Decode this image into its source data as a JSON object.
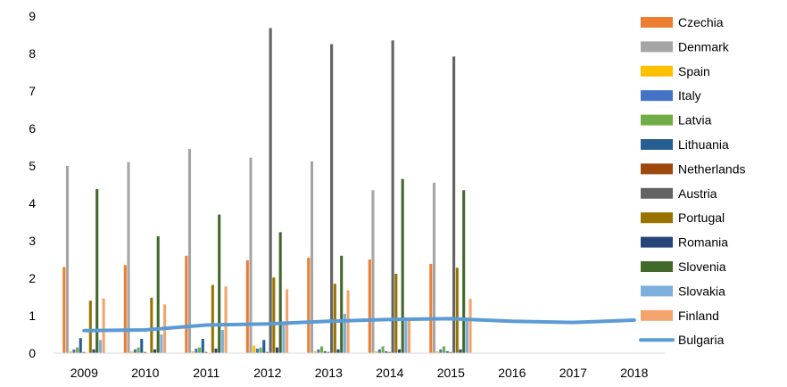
{
  "chart_data": {
    "type": "bar",
    "categories": [
      "2009",
      "2010",
      "2011",
      "2012",
      "2013",
      "2014",
      "2015",
      "2016",
      "2017",
      "2018"
    ],
    "ylim": [
      0,
      9
    ],
    "yticks": [
      "0",
      "1",
      "2",
      "3",
      "4",
      "5",
      "6",
      "7",
      "8",
      "9"
    ],
    "grid": false,
    "legend_position": "right",
    "series": [
      {
        "name": "Czechia",
        "type": "bar",
        "color": "#ED7D31",
        "values": [
          2.3,
          2.35,
          2.6,
          2.48,
          2.55,
          2.5,
          2.38,
          null,
          null,
          null
        ]
      },
      {
        "name": "Denmark",
        "type": "bar",
        "color": "#A5A5A5",
        "values": [
          5.0,
          5.1,
          5.45,
          5.22,
          5.12,
          4.35,
          4.55,
          null,
          null,
          null
        ]
      },
      {
        "name": "Spain",
        "type": "bar",
        "color": "#FFC000",
        "values": [
          0.05,
          0.05,
          0.05,
          0.2,
          0.05,
          0.05,
          0.05,
          null,
          null,
          null
        ]
      },
      {
        "name": "Italy",
        "type": "bar",
        "color": "#4472C4",
        "values": [
          0.1,
          0.1,
          0.12,
          0.12,
          0.1,
          0.1,
          0.1,
          null,
          null,
          null
        ]
      },
      {
        "name": "Latvia",
        "type": "bar",
        "color": "#70AD47",
        "values": [
          0.15,
          0.15,
          0.15,
          0.15,
          0.18,
          0.18,
          0.18,
          null,
          null,
          null
        ]
      },
      {
        "name": "Lithuania",
        "type": "bar",
        "color": "#255E91",
        "values": [
          0.4,
          0.38,
          0.38,
          0.35,
          0.05,
          0.05,
          0.05,
          null,
          null,
          null
        ]
      },
      {
        "name": "Netherlands",
        "type": "bar",
        "color": "#9E480E",
        "values": [
          0.03,
          0.03,
          0.03,
          0.03,
          0.03,
          0.03,
          0.03,
          null,
          null,
          null
        ]
      },
      {
        "name": "Austria",
        "type": "bar",
        "color": "#636363",
        "values": [
          0.0,
          0.0,
          0.0,
          8.68,
          8.25,
          8.35,
          7.92,
          null,
          null,
          null
        ]
      },
      {
        "name": "Portugal",
        "type": "bar",
        "color": "#997300",
        "values": [
          1.4,
          1.48,
          1.82,
          2.02,
          1.85,
          2.12,
          2.28,
          null,
          null,
          null
        ]
      },
      {
        "name": "Romania",
        "type": "bar",
        "color": "#264478",
        "values": [
          0.1,
          0.1,
          0.12,
          0.15,
          0.1,
          0.1,
          0.1,
          null,
          null,
          null
        ]
      },
      {
        "name": "Slovenia",
        "type": "bar",
        "color": "#43682B",
        "values": [
          4.38,
          3.12,
          3.7,
          3.23,
          2.6,
          4.65,
          4.35,
          null,
          null,
          null
        ]
      },
      {
        "name": "Slovakia",
        "type": "bar",
        "color": "#7CAFDD",
        "values": [
          0.35,
          0.5,
          0.62,
          0.8,
          1.05,
          0.9,
          0.9,
          null,
          null,
          null
        ]
      },
      {
        "name": "Finland",
        "type": "bar",
        "color": "#F4A46C",
        "values": [
          1.46,
          1.3,
          1.78,
          1.7,
          1.68,
          0.95,
          1.45,
          null,
          null,
          null
        ]
      },
      {
        "name": "Bulgaria",
        "type": "line",
        "color": "#5B9BD5",
        "values": [
          0.6,
          0.62,
          0.75,
          0.78,
          0.85,
          0.9,
          0.92,
          0.85,
          0.82,
          0.88
        ]
      }
    ]
  }
}
